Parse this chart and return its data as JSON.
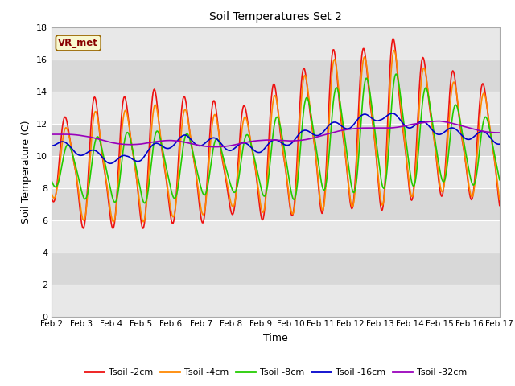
{
  "title": "Soil Temperatures Set 2",
  "xlabel": "Time",
  "ylabel": "Soil Temperature (C)",
  "annotation": "VR_met",
  "ylim": [
    0,
    18
  ],
  "yticks": [
    0,
    2,
    4,
    6,
    8,
    10,
    12,
    14,
    16,
    18
  ],
  "colors": {
    "Tsoil -2cm": "#ee1111",
    "Tsoil -4cm": "#ff8800",
    "Tsoil -8cm": "#22cc00",
    "Tsoil -16cm": "#0000cc",
    "Tsoil -32cm": "#9900bb"
  },
  "xtick_labels": [
    "Feb 2",
    "Feb 3",
    "Feb 4",
    "Feb 5",
    "Feb 6",
    "Feb 7",
    "Feb 8",
    "Feb 9",
    "Feb 10",
    "Feb 11",
    "Feb 12",
    "Feb 13",
    "Feb 14",
    "Feb 15",
    "Feb 16",
    "Feb 17"
  ],
  "xtick_positions": [
    0,
    1,
    2,
    3,
    4,
    5,
    6,
    7,
    8,
    9,
    10,
    11,
    12,
    13,
    14,
    15
  ],
  "band_colors": [
    "#e8e8e8",
    "#d8d8d8"
  ],
  "fig_bg": "#ffffff",
  "lw": 1.2
}
